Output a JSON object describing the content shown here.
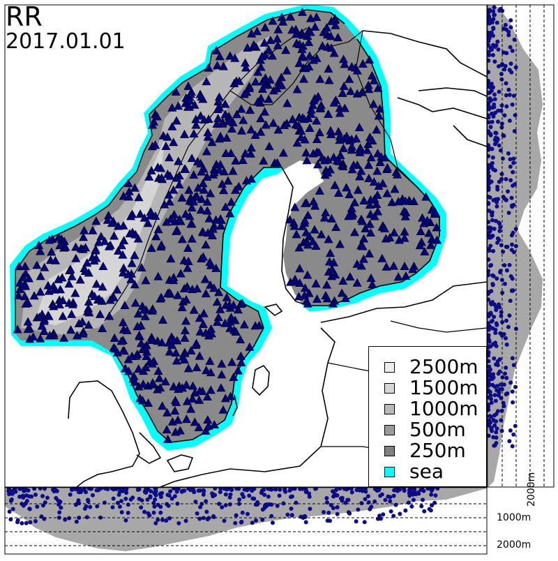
{
  "map": {
    "variable": "RR",
    "date": "2017.01.01",
    "colors": {
      "sea": "#00ffff",
      "land_outline": "#000000",
      "station_fill": "#000080",
      "profile_gray": "#a8a8a8",
      "profile_points": "#0a0a8a"
    },
    "legend": [
      {
        "label": "2500m",
        "color": "#eeeeee"
      },
      {
        "label": "1500m",
        "color": "#d6d6d6"
      },
      {
        "label": "1000m",
        "color": "#b8b8b8"
      },
      {
        "label": "500m",
        "color": "#9a9a9a"
      },
      {
        "label": "250m",
        "color": "#7e7e7e"
      },
      {
        "label": "sea",
        "color": "#00ffff"
      }
    ],
    "profile_axis": {
      "bottom_ticks": [
        "1000m",
        "2000m"
      ],
      "right_ticks": [
        "2000m"
      ]
    }
  }
}
